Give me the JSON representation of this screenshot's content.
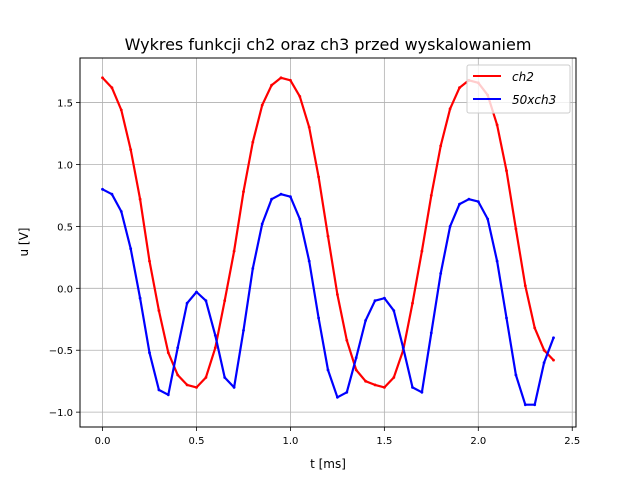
{
  "chart_data": {
    "type": "line",
    "title": "Wykres funkcji ch2 oraz ch3 przed wyskalowaniem",
    "xlabel": "t [ms]",
    "ylabel": "u [V]",
    "xlim": [
      -0.12,
      2.52
    ],
    "ylim": [
      -1.12,
      1.86
    ],
    "grid": true,
    "legend_position": "top-right",
    "x_ticks": [
      0.0,
      0.5,
      1.0,
      1.5,
      2.0,
      2.5
    ],
    "x_tick_labels": [
      "0.0",
      "0.5",
      "1.0",
      "1.5",
      "2.0",
      "2.5"
    ],
    "y_ticks": [
      -1.0,
      -0.5,
      0.0,
      0.5,
      1.0,
      1.5
    ],
    "y_tick_labels": [
      "−1.0",
      "−0.5",
      "0.0",
      "0.5",
      "1.0",
      "1.5"
    ],
    "series": [
      {
        "name": "ch2",
        "color": "#ff0000",
        "x": [
          0.0,
          0.05,
          0.1,
          0.15,
          0.2,
          0.25,
          0.3,
          0.35,
          0.4,
          0.45,
          0.5,
          0.55,
          0.6,
          0.65,
          0.7,
          0.75,
          0.8,
          0.85,
          0.9,
          0.95,
          1.0,
          1.05,
          1.1,
          1.15,
          1.2,
          1.25,
          1.3,
          1.35,
          1.4,
          1.45,
          1.5,
          1.55,
          1.6,
          1.65,
          1.7,
          1.75,
          1.8,
          1.85,
          1.9,
          1.95,
          2.0,
          2.05,
          2.1,
          2.15,
          2.2,
          2.25,
          2.3,
          2.35,
          2.4
        ],
        "values": [
          1.7,
          1.62,
          1.44,
          1.12,
          0.72,
          0.22,
          -0.18,
          -0.52,
          -0.7,
          -0.78,
          -0.8,
          -0.72,
          -0.48,
          -0.1,
          0.3,
          0.78,
          1.18,
          1.48,
          1.64,
          1.7,
          1.68,
          1.55,
          1.3,
          0.9,
          0.42,
          -0.05,
          -0.42,
          -0.66,
          -0.75,
          -0.78,
          -0.8,
          -0.72,
          -0.5,
          -0.12,
          0.3,
          0.75,
          1.15,
          1.45,
          1.62,
          1.68,
          1.66,
          1.56,
          1.32,
          0.95,
          0.48,
          0.02,
          -0.32,
          -0.5,
          -0.58
        ]
      },
      {
        "name": "50xch3",
        "color": "#0000ff",
        "x": [
          0.0,
          0.05,
          0.1,
          0.15,
          0.2,
          0.25,
          0.3,
          0.35,
          0.4,
          0.45,
          0.5,
          0.55,
          0.6,
          0.65,
          0.7,
          0.75,
          0.8,
          0.85,
          0.9,
          0.95,
          1.0,
          1.05,
          1.1,
          1.15,
          1.2,
          1.25,
          1.3,
          1.35,
          1.4,
          1.45,
          1.5,
          1.55,
          1.6,
          1.65,
          1.7,
          1.75,
          1.8,
          1.85,
          1.9,
          1.95,
          2.0,
          2.05,
          2.1,
          2.15,
          2.2,
          2.25,
          2.3,
          2.35,
          2.4
        ],
        "values": [
          0.8,
          0.76,
          0.62,
          0.32,
          -0.08,
          -0.52,
          -0.82,
          -0.86,
          -0.48,
          -0.12,
          -0.03,
          -0.1,
          -0.38,
          -0.72,
          -0.8,
          -0.34,
          0.16,
          0.52,
          0.72,
          0.76,
          0.74,
          0.56,
          0.22,
          -0.24,
          -0.66,
          -0.88,
          -0.84,
          -0.56,
          -0.26,
          -0.1,
          -0.08,
          -0.18,
          -0.48,
          -0.8,
          -0.84,
          -0.36,
          0.12,
          0.5,
          0.68,
          0.72,
          0.7,
          0.56,
          0.22,
          -0.24,
          -0.7,
          -0.94,
          -0.94,
          -0.6,
          -0.4
        ]
      }
    ]
  }
}
